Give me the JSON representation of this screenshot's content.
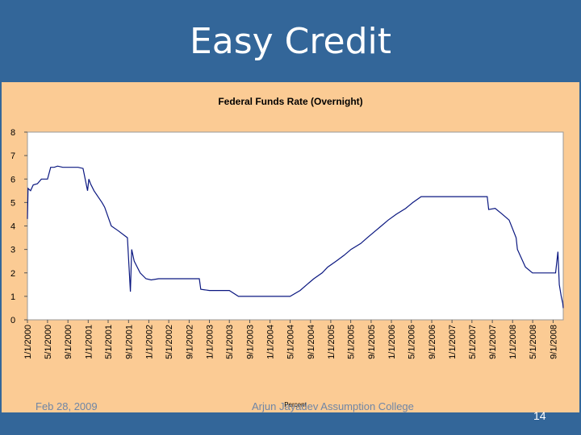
{
  "slide": {
    "title": "Easy Credit",
    "footer_date": "Feb 28, 2009",
    "footer_credit": "Arjun Jayadev Assumption College",
    "slide_number": "14"
  },
  "colors": {
    "background": "#336699",
    "panel": "#fbcb94",
    "plot": "#ffffff",
    "line": "#0a1780"
  },
  "chart_data": {
    "type": "line",
    "title": "Federal Funds Rate (Overnight)",
    "xlabel": "Percent",
    "ylabel": "",
    "ylim": [
      0,
      8
    ],
    "yticks": [
      "0",
      "1",
      "2",
      "3",
      "4",
      "5",
      "6",
      "7",
      "8"
    ],
    "xlim": [
      "2000-01-01",
      "2008-11-01"
    ],
    "xticks": [
      "1/1/2000",
      "5/1/2000",
      "9/1/2000",
      "1/1/2001",
      "5/1/2001",
      "9/1/2001",
      "1/1/2002",
      "5/1/2002",
      "9/1/2002",
      "1/1/2003",
      "5/1/2003",
      "9/1/2003",
      "1/1/2004",
      "5/1/2004",
      "9/1/2004",
      "1/1/2005",
      "5/1/2005",
      "9/1/2005",
      "1/1/2006",
      "5/1/2006",
      "9/1/2006",
      "1/1/2007",
      "5/1/2007",
      "9/1/2007",
      "1/1/2008",
      "5/1/2008",
      "9/1/2008"
    ],
    "grid": false,
    "legend": "none",
    "series": [
      {
        "values": [
          [
            "2000-01-01",
            4.3
          ],
          [
            "2000-01-05",
            5.6
          ],
          [
            "2000-01-20",
            5.5
          ],
          [
            "2000-02-05",
            5.75
          ],
          [
            "2000-03-01",
            5.8
          ],
          [
            "2000-03-25",
            6.0
          ],
          [
            "2000-05-01",
            6.0
          ],
          [
            "2000-05-20",
            6.5
          ],
          [
            "2000-06-10",
            6.5
          ],
          [
            "2000-07-01",
            6.55
          ],
          [
            "2000-08-01",
            6.5
          ],
          [
            "2000-09-01",
            6.5
          ],
          [
            "2000-10-01",
            6.5
          ],
          [
            "2000-11-01",
            6.5
          ],
          [
            "2000-12-01",
            6.45
          ],
          [
            "2000-12-28",
            5.5
          ],
          [
            "2001-01-05",
            6.0
          ],
          [
            "2001-01-15",
            5.8
          ],
          [
            "2001-02-05",
            5.5
          ],
          [
            "2001-03-25",
            5.0
          ],
          [
            "2001-04-10",
            4.8
          ],
          [
            "2001-05-20",
            4.0
          ],
          [
            "2001-06-30",
            3.8
          ],
          [
            "2001-08-25",
            3.5
          ],
          [
            "2001-09-12",
            1.2
          ],
          [
            "2001-09-20",
            3.0
          ],
          [
            "2001-10-05",
            2.5
          ],
          [
            "2001-11-10",
            2.0
          ],
          [
            "2001-12-15",
            1.75
          ],
          [
            "2002-01-15",
            1.7
          ],
          [
            "2002-03-01",
            1.75
          ],
          [
            "2002-05-01",
            1.75
          ],
          [
            "2002-07-01",
            1.75
          ],
          [
            "2002-09-01",
            1.75
          ],
          [
            "2002-11-01",
            1.75
          ],
          [
            "2002-11-10",
            1.3
          ],
          [
            "2003-01-01",
            1.25
          ],
          [
            "2003-03-01",
            1.25
          ],
          [
            "2003-05-01",
            1.25
          ],
          [
            "2003-06-25",
            1.0
          ],
          [
            "2003-09-01",
            1.0
          ],
          [
            "2004-01-01",
            1.0
          ],
          [
            "2004-03-01",
            1.0
          ],
          [
            "2004-05-01",
            1.0
          ],
          [
            "2004-06-30",
            1.25
          ],
          [
            "2004-08-10",
            1.5
          ],
          [
            "2004-09-21",
            1.75
          ],
          [
            "2004-11-10",
            2.0
          ],
          [
            "2004-12-14",
            2.25
          ],
          [
            "2005-02-02",
            2.5
          ],
          [
            "2005-03-22",
            2.75
          ],
          [
            "2005-05-03",
            3.0
          ],
          [
            "2005-06-30",
            3.25
          ],
          [
            "2005-08-09",
            3.5
          ],
          [
            "2005-09-20",
            3.75
          ],
          [
            "2005-11-01",
            4.0
          ],
          [
            "2005-12-13",
            4.25
          ],
          [
            "2006-01-31",
            4.5
          ],
          [
            "2006-03-28",
            4.75
          ],
          [
            "2006-05-10",
            5.0
          ],
          [
            "2006-06-29",
            5.25
          ],
          [
            "2006-09-01",
            5.25
          ],
          [
            "2007-01-01",
            5.25
          ],
          [
            "2007-05-01",
            5.25
          ],
          [
            "2007-08-01",
            5.25
          ],
          [
            "2007-08-10",
            4.7
          ],
          [
            "2007-09-18",
            4.75
          ],
          [
            "2007-10-31",
            4.5
          ],
          [
            "2007-12-11",
            4.25
          ],
          [
            "2008-01-22",
            3.5
          ],
          [
            "2008-01-30",
            3.0
          ],
          [
            "2008-03-18",
            2.25
          ],
          [
            "2008-04-30",
            2.0
          ],
          [
            "2008-06-01",
            2.0
          ],
          [
            "2008-08-01",
            2.0
          ],
          [
            "2008-09-16",
            2.0
          ],
          [
            "2008-09-30",
            2.9
          ],
          [
            "2008-10-08",
            1.5
          ],
          [
            "2008-10-20",
            1.0
          ],
          [
            "2008-10-29",
            0.7
          ],
          [
            "2008-11-01",
            0.5
          ]
        ]
      }
    ]
  }
}
